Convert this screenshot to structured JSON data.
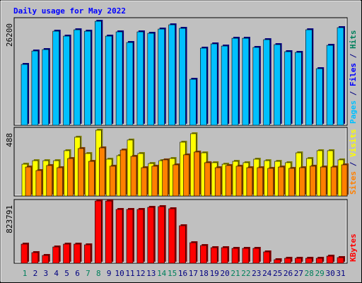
{
  "chart_data": [
    {
      "type": "bar",
      "title": "Daily usage for May 2022",
      "y_label": "26200",
      "ylim": [
        0,
        27100
      ],
      "legend": [
        {
          "text": "Pages",
          "color": "#00C0FF"
        },
        {
          "text": " / ",
          "color": "#000080"
        },
        {
          "text": "Files",
          "color": "#0000FF"
        },
        {
          "text": " / ",
          "color": "#000080"
        },
        {
          "text": "Hits",
          "color": "#00805C"
        }
      ],
      "series": [
        {
          "color": "#00C0FF",
          "values": [
            15330,
            18710,
            19070,
            23700,
            22460,
            24060,
            23700,
            26200,
            22460,
            23530,
            20850,
            23530,
            23170,
            24240,
            25310,
            24420,
            11580,
            19430,
            20500,
            19960,
            21920,
            21920,
            19610,
            21570,
            20320,
            18540,
            18360,
            24060,
            14260,
            20140,
            24600
          ]
        }
      ]
    },
    {
      "type": "bar",
      "y_label": "488",
      "ylim": [
        0,
        509
      ],
      "legend": [
        {
          "text": "Sites",
          "color": "#FF8000"
        },
        {
          "text": " / ",
          "color": "#000080"
        },
        {
          "text": "Visits",
          "color": "#FFFF00"
        }
      ],
      "series": [
        {
          "color": "#FFFF00",
          "values": [
            236,
            262,
            262,
            262,
            336,
            436,
            315,
            488,
            273,
            299,
            415,
            315,
            241,
            262,
            278,
            399,
            462,
            320,
            247,
            236,
            257,
            247,
            273,
            262,
            257,
            247,
            320,
            278,
            336,
            336,
            268
          ]
        },
        {
          "color": "#FF8000",
          "values": [
            215,
            189,
            226,
            210,
            278,
            352,
            257,
            357,
            221,
            341,
            294,
            210,
            221,
            268,
            231,
            305,
            326,
            247,
            210,
            226,
            221,
            210,
            210,
            205,
            215,
            205,
            210,
            221,
            215,
            215,
            231
          ]
        }
      ]
    },
    {
      "type": "bar",
      "y_label": "823791",
      "ylim": [
        0,
        842500
      ],
      "legend": [
        {
          "text": "KBytes",
          "color": "#FF0000"
        }
      ],
      "categories": [
        "1",
        "2",
        "3",
        "4",
        "5",
        "6",
        "7",
        "8",
        "9",
        "10",
        "11",
        "12",
        "13",
        "14",
        "15",
        "16",
        "17",
        "18",
        "19",
        "20",
        "21",
        "22",
        "23",
        "24",
        "25",
        "26",
        "27",
        "28",
        "29",
        "30",
        "31"
      ],
      "category_colors": [
        "#00805C",
        "#000080",
        "#000080",
        "#000080",
        "#000080",
        "#000080",
        "#00805C",
        "#00805C",
        "#000080",
        "#000080",
        "#000080",
        "#000080",
        "#000080",
        "#00805C",
        "#00805C",
        "#000080",
        "#000080",
        "#000080",
        "#000080",
        "#000080",
        "#00805C",
        "#00805C",
        "#000080",
        "#000080",
        "#000080",
        "#000080",
        "#000080",
        "#00805C",
        "#00805C",
        "#000080",
        "#000080"
      ],
      "series": [
        {
          "color": "#FF0000",
          "values": [
            252750,
            140420,
            102970,
            215300,
            252750,
            252750,
            243390,
            823791,
            823000,
            711440,
            711440,
            711440,
            739520,
            748880,
            720800,
            496130,
            271470,
            234030,
            205940,
            205940,
            196580,
            196580,
            196580,
            149780,
            46810,
            65530,
            65530,
            65530,
            65530,
            93610,
            74890
          ]
        }
      ]
    }
  ]
}
